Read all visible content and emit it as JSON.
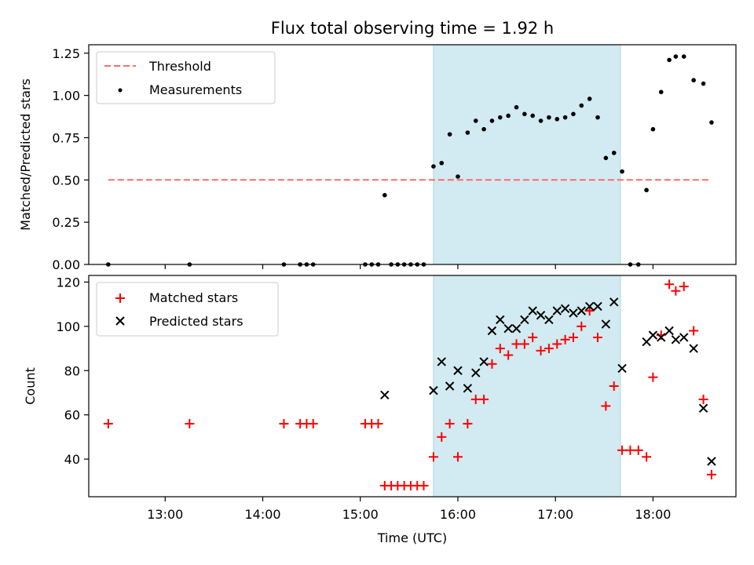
{
  "chart_data": [
    {
      "type": "scatter",
      "title": "Flux total observing time = 1.92 h",
      "ylabel": "Matched/Predicted stars",
      "xlabel": "",
      "xlim": [
        "12:13",
        "18:51"
      ],
      "ylim": [
        0,
        1.3
      ],
      "yticks": [
        "0.00",
        "0.25",
        "0.50",
        "0.75",
        "1.00",
        "1.25"
      ],
      "legend_position": "top-left",
      "shaded_interval": [
        "15:45",
        "17:40"
      ],
      "shade_color": "#add8e6",
      "threshold": {
        "name": "Threshold",
        "y": 0.5,
        "x_start": "12:25",
        "x_end": "18:35",
        "color": "#ff6b6b",
        "style": "dashed"
      },
      "series": [
        {
          "name": "Measurements",
          "color": "#000000",
          "marker": "dot",
          "points": [
            [
              "12:25",
              0.0
            ],
            [
              "13:15",
              0.0
            ],
            [
              "14:13",
              0.0
            ],
            [
              "14:23",
              0.0
            ],
            [
              "14:27",
              0.0
            ],
            [
              "14:31",
              0.0
            ],
            [
              "15:03",
              0.0
            ],
            [
              "15:07",
              0.0
            ],
            [
              "15:11",
              0.0
            ],
            [
              "15:15",
              0.41
            ],
            [
              "15:19",
              0.0
            ],
            [
              "15:23",
              0.0
            ],
            [
              "15:27",
              0.0
            ],
            [
              "15:31",
              0.0
            ],
            [
              "15:35",
              0.0
            ],
            [
              "15:39",
              0.0
            ],
            [
              "15:45",
              0.58
            ],
            [
              "15:50",
              0.6
            ],
            [
              "15:55",
              0.77
            ],
            [
              "16:00",
              0.52
            ],
            [
              "16:06",
              0.78
            ],
            [
              "16:11",
              0.85
            ],
            [
              "16:16",
              0.8
            ],
            [
              "16:21",
              0.85
            ],
            [
              "16:26",
              0.87
            ],
            [
              "16:31",
              0.88
            ],
            [
              "16:36",
              0.93
            ],
            [
              "16:41",
              0.89
            ],
            [
              "16:46",
              0.88
            ],
            [
              "16:51",
              0.85
            ],
            [
              "16:56",
              0.87
            ],
            [
              "17:01",
              0.86
            ],
            [
              "17:06",
              0.87
            ],
            [
              "17:11",
              0.89
            ],
            [
              "17:16",
              0.94
            ],
            [
              "17:21",
              0.98
            ],
            [
              "17:26",
              0.87
            ],
            [
              "17:31",
              0.63
            ],
            [
              "17:36",
              0.66
            ],
            [
              "17:41",
              0.55
            ],
            [
              "17:46",
              0.0
            ],
            [
              "17:51",
              0.0
            ],
            [
              "17:56",
              0.44
            ],
            [
              "18:00",
              0.8
            ],
            [
              "18:05",
              1.02
            ],
            [
              "18:10",
              1.21
            ],
            [
              "18:14",
              1.23
            ],
            [
              "18:19",
              1.23
            ],
            [
              "18:25",
              1.09
            ],
            [
              "18:31",
              1.07
            ],
            [
              "18:36",
              0.84
            ]
          ]
        }
      ]
    },
    {
      "type": "scatter",
      "title": "",
      "xlabel": "Time (UTC)",
      "ylabel": "Count",
      "xlim": [
        "12:13",
        "18:51"
      ],
      "xticks": [
        "13:00",
        "14:00",
        "15:00",
        "16:00",
        "17:00",
        "18:00"
      ],
      "ylim": [
        23,
        123
      ],
      "yticks": [
        "40",
        "60",
        "80",
        "100",
        "120"
      ],
      "legend_position": "top-left",
      "shaded_interval": [
        "15:45",
        "17:40"
      ],
      "shade_color": "#add8e6",
      "series": [
        {
          "name": "Matched stars",
          "color": "#ff0000",
          "marker": "plus",
          "points": [
            [
              "12:25",
              56
            ],
            [
              "13:15",
              56
            ],
            [
              "14:13",
              56
            ],
            [
              "14:23",
              56
            ],
            [
              "14:27",
              56
            ],
            [
              "14:31",
              56
            ],
            [
              "15:03",
              56
            ],
            [
              "15:07",
              56
            ],
            [
              "15:11",
              56
            ],
            [
              "15:15",
              28
            ],
            [
              "15:19",
              28
            ],
            [
              "15:23",
              28
            ],
            [
              "15:27",
              28
            ],
            [
              "15:31",
              28
            ],
            [
              "15:35",
              28
            ],
            [
              "15:39",
              28
            ],
            [
              "15:45",
              41
            ],
            [
              "15:50",
              50
            ],
            [
              "15:55",
              56
            ],
            [
              "16:00",
              41
            ],
            [
              "16:06",
              56
            ],
            [
              "16:11",
              67
            ],
            [
              "16:16",
              67
            ],
            [
              "16:21",
              83
            ],
            [
              "16:26",
              90
            ],
            [
              "16:31",
              87
            ],
            [
              "16:36",
              92
            ],
            [
              "16:41",
              92
            ],
            [
              "16:46",
              95
            ],
            [
              "16:51",
              89
            ],
            [
              "16:56",
              90
            ],
            [
              "17:01",
              92
            ],
            [
              "17:06",
              94
            ],
            [
              "17:11",
              95
            ],
            [
              "17:16",
              100
            ],
            [
              "17:21",
              107
            ],
            [
              "17:26",
              95
            ],
            [
              "17:31",
              64
            ],
            [
              "17:36",
              73
            ],
            [
              "17:41",
              44
            ],
            [
              "17:46",
              44
            ],
            [
              "17:51",
              44
            ],
            [
              "17:56",
              41
            ],
            [
              "18:00",
              77
            ],
            [
              "18:05",
              96
            ],
            [
              "18:10",
              119
            ],
            [
              "18:14",
              116
            ],
            [
              "18:19",
              118
            ],
            [
              "18:25",
              98
            ],
            [
              "18:31",
              67
            ],
            [
              "18:36",
              33
            ]
          ]
        },
        {
          "name": "Predicted stars",
          "color": "#000000",
          "marker": "x",
          "points": [
            [
              "15:15",
              69
            ],
            [
              "15:45",
              71
            ],
            [
              "15:50",
              84
            ],
            [
              "15:55",
              73
            ],
            [
              "16:00",
              80
            ],
            [
              "16:06",
              72
            ],
            [
              "16:11",
              79
            ],
            [
              "16:16",
              84
            ],
            [
              "16:21",
              98
            ],
            [
              "16:26",
              103
            ],
            [
              "16:31",
              99
            ],
            [
              "16:36",
              99
            ],
            [
              "16:41",
              103
            ],
            [
              "16:46",
              107
            ],
            [
              "16:51",
              105
            ],
            [
              "16:56",
              103
            ],
            [
              "17:01",
              107
            ],
            [
              "17:06",
              108
            ],
            [
              "17:11",
              106
            ],
            [
              "17:16",
              107
            ],
            [
              "17:21",
              109
            ],
            [
              "17:26",
              109
            ],
            [
              "17:31",
              101
            ],
            [
              "17:36",
              111
            ],
            [
              "17:41",
              81
            ],
            [
              "17:56",
              93
            ],
            [
              "18:00",
              96
            ],
            [
              "18:05",
              95
            ],
            [
              "18:10",
              98
            ],
            [
              "18:14",
              94
            ],
            [
              "18:19",
              95
            ],
            [
              "18:25",
              90
            ],
            [
              "18:31",
              63
            ],
            [
              "18:36",
              39
            ]
          ]
        }
      ]
    }
  ]
}
